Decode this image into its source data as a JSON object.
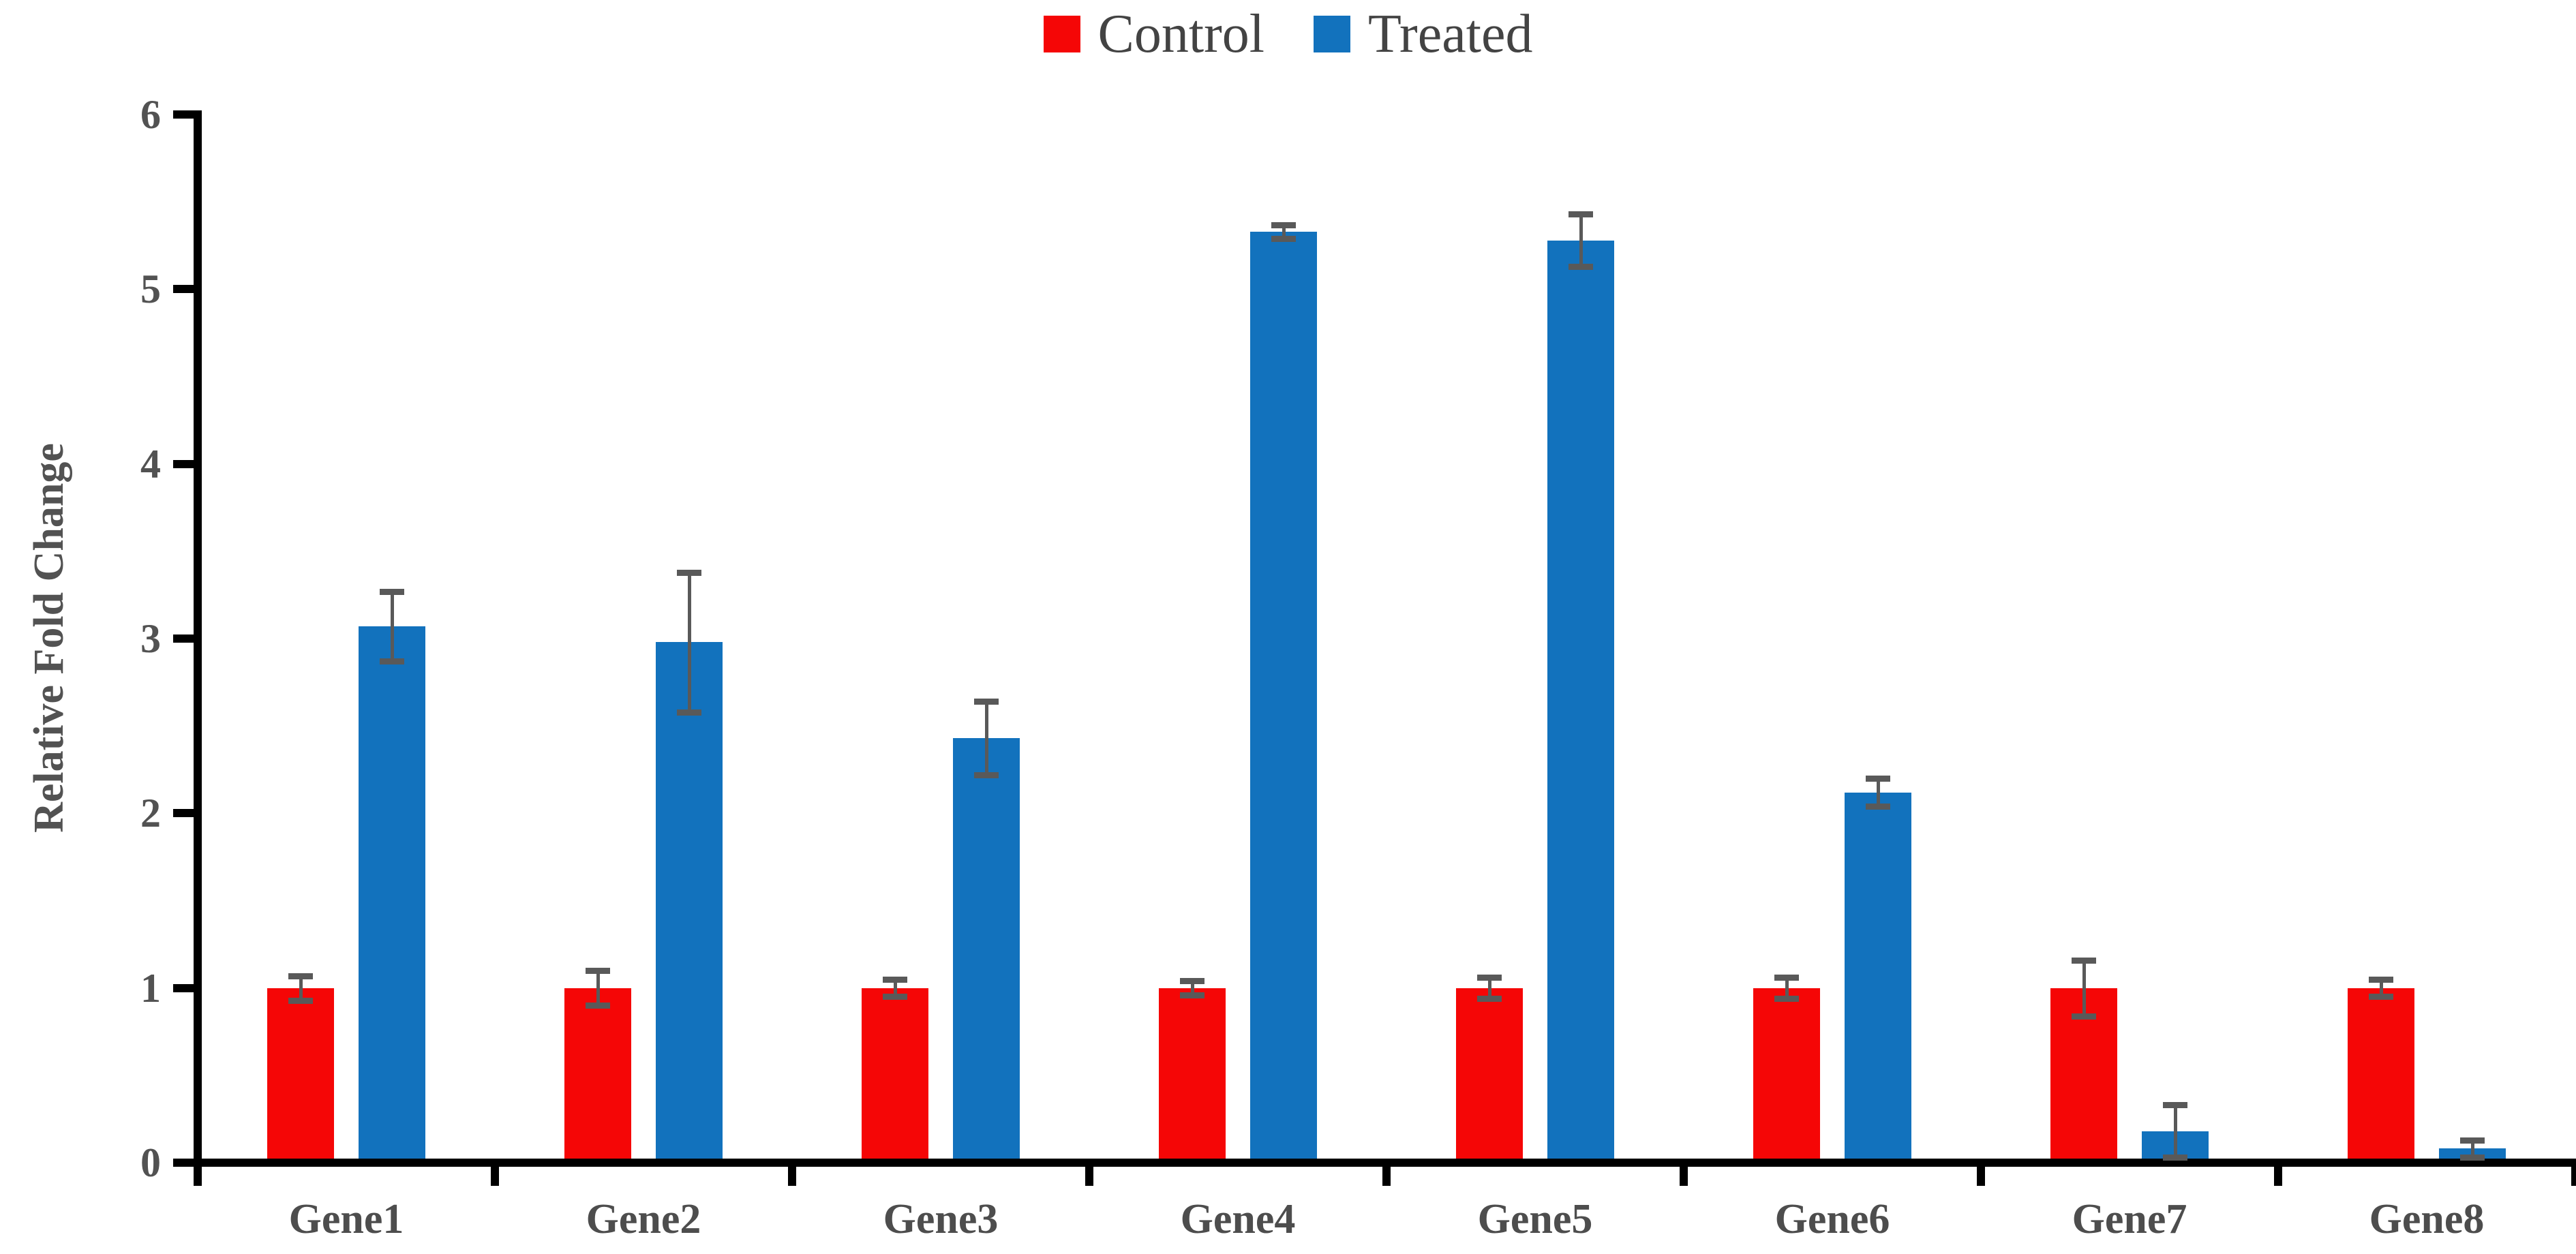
{
  "chart_data": {
    "type": "bar",
    "title": "",
    "xlabel": "",
    "ylabel": "Relative Fold Change",
    "ylim": [
      0,
      6
    ],
    "yticks": [
      0,
      1,
      2,
      3,
      4,
      5,
      6
    ],
    "grid": false,
    "legend_position": "top-center",
    "categories": [
      "Gene1",
      "Gene2",
      "Gene3",
      "Gene4",
      "Gene5",
      "Gene6",
      "Gene7",
      "Gene8"
    ],
    "series": [
      {
        "name": "Control",
        "color": "#f50606",
        "values": [
          1.0,
          1.0,
          1.0,
          1.0,
          1.0,
          1.0,
          1.0,
          1.0
        ],
        "errors": [
          0.07,
          0.1,
          0.05,
          0.04,
          0.06,
          0.06,
          0.16,
          0.05
        ]
      },
      {
        "name": "Treated",
        "color": "#1272bd",
        "values": [
          3.07,
          2.98,
          2.43,
          5.33,
          5.28,
          2.12,
          0.18,
          0.08
        ],
        "errors": [
          0.2,
          0.4,
          0.21,
          0.04,
          0.15,
          0.08,
          0.15,
          0.05
        ]
      }
    ],
    "error_bar_color": "#595959",
    "axis_color": "#000000",
    "tick_text_color": "#525252",
    "legend_text_color": "#434343",
    "background_color": "#ffffff"
  }
}
